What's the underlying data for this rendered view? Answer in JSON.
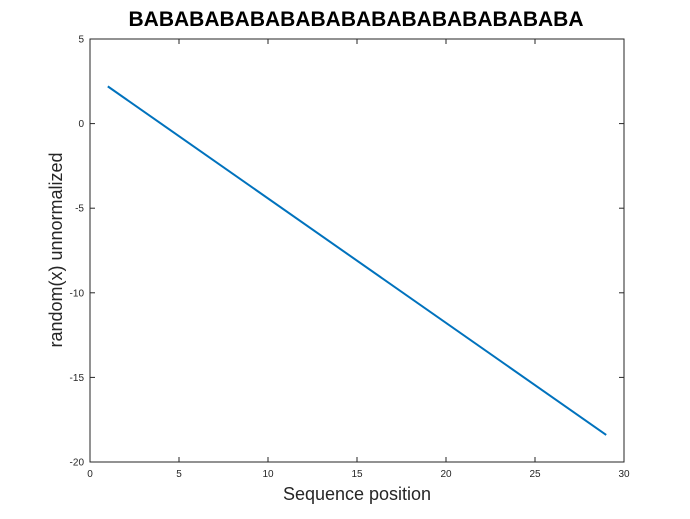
{
  "chart_data": {
    "type": "line",
    "title": "BABABABABABABABABABABABABABABA",
    "xlabel": "Sequence position",
    "ylabel": "random(x) unnormalized",
    "xlim": [
      0,
      30
    ],
    "ylim": [
      -20,
      5
    ],
    "xticks": [
      0,
      5,
      10,
      15,
      20,
      25,
      30
    ],
    "yticks": [
      5,
      0,
      -5,
      -10,
      -15,
      -20
    ],
    "grid": false,
    "series": [
      {
        "color": "#0072BD",
        "x": [
          1,
          29
        ],
        "y": [
          2.2,
          -18.4
        ]
      }
    ]
  }
}
